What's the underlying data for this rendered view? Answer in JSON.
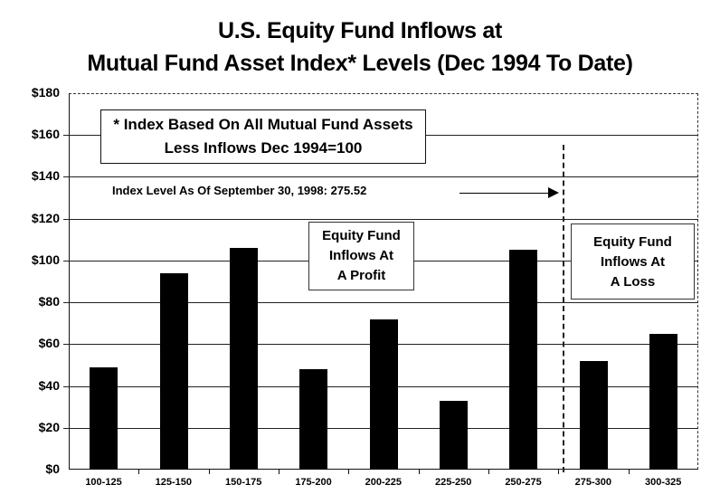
{
  "chart_data": {
    "type": "bar",
    "title": "U.S. Equity Fund Inflows at",
    "subtitle": "Mutual Fund Asset Index* Levels (Dec 1994 To Date)",
    "xlabel": "",
    "ylabel": "",
    "ylim": [
      0,
      180
    ],
    "yticks": [
      "$0",
      "$20",
      "$40",
      "$60",
      "$80",
      "$100",
      "$120",
      "$140",
      "$160",
      "$180"
    ],
    "grid": true,
    "categories": [
      "100-125",
      "125-150",
      "150-175",
      "175-200",
      "200-225",
      "225-250",
      "250-275",
      "275-300",
      "300-325"
    ],
    "values": [
      49,
      94,
      106,
      48,
      72,
      33,
      105,
      52,
      65
    ],
    "annotations": {
      "footnote_line1": "* Index Based On All Mutual Fund Assets",
      "footnote_line2": "Less Inflows Dec 1994=100",
      "index_level": "Index Level As Of September 30, 1998:  275.52",
      "profit_region": [
        "Equity Fund",
        "Inflows At",
        "A Profit"
      ],
      "loss_region": [
        "Equity Fund",
        "Inflows At",
        "A Loss"
      ],
      "divider_at": 275.52
    },
    "colors": {
      "bar": "#000000",
      "grid": "#222222",
      "background": "#ffffff"
    }
  }
}
